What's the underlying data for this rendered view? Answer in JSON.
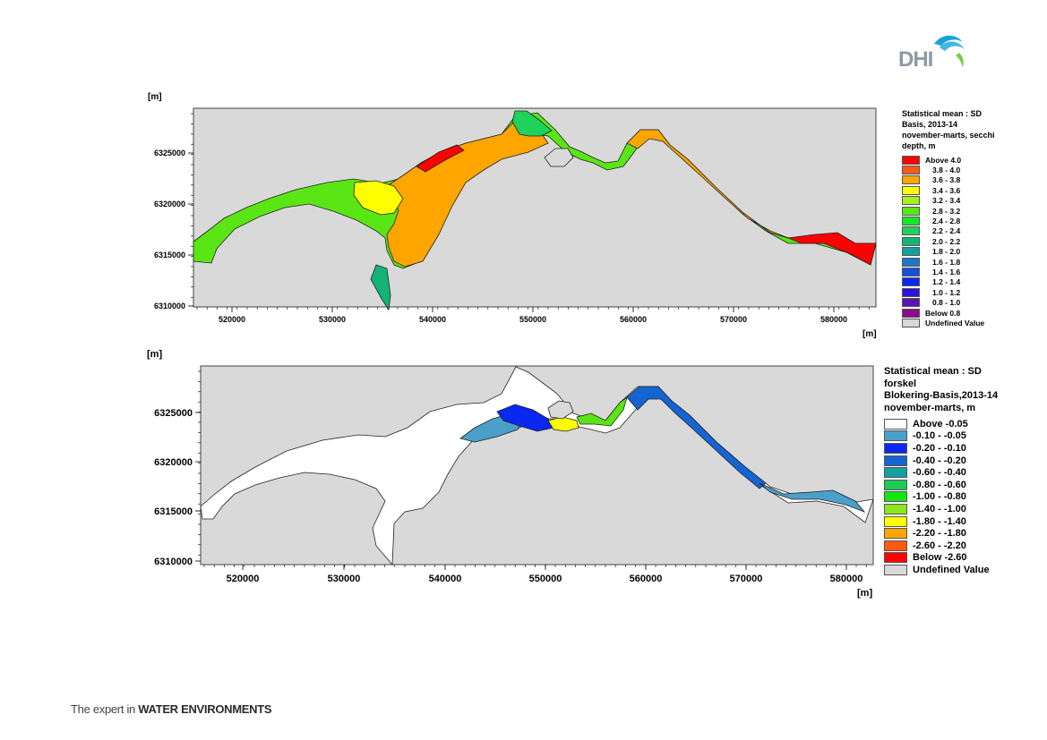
{
  "logo": {
    "text": "DHI"
  },
  "tagline": {
    "prefix": "The expert in ",
    "emphasis": "WATER ENVIRONMENTS"
  },
  "maps": [
    {
      "id": "top",
      "axis_unit_y": "[m]",
      "axis_unit_x": "[m]",
      "x_ticks": [
        "520000",
        "530000",
        "540000",
        "550000",
        "560000",
        "570000",
        "580000"
      ],
      "y_ticks": [
        "6325000",
        "6320000",
        "6315000",
        "6310000"
      ],
      "legend_title": "Statistical mean : SD\nBasis, 2013-14\nnovember-marts, secchi\ndepth, m",
      "legend": [
        {
          "label": "Above 4.0",
          "color": "#ff0000"
        },
        {
          "label": "3.8 - 4.0",
          "color": "#ff5a14"
        },
        {
          "label": "3.6 - 3.8",
          "color": "#ffa500"
        },
        {
          "label": "3.4 - 3.6",
          "color": "#ffff00"
        },
        {
          "label": "3.2 - 3.4",
          "color": "#a8f01e"
        },
        {
          "label": "2.8 - 3.2",
          "color": "#5ae614"
        },
        {
          "label": "2.4 - 2.8",
          "color": "#14e628"
        },
        {
          "label": "2.2 - 2.4",
          "color": "#1ed25a"
        },
        {
          "label": "2.0 - 2.2",
          "color": "#14b478"
        },
        {
          "label": "1.8 - 2.0",
          "color": "#14a0a0"
        },
        {
          "label": "1.6 - 1.8",
          "color": "#1e78c8"
        },
        {
          "label": "1.4 - 1.6",
          "color": "#1450dc"
        },
        {
          "label": "1.2 - 1.4",
          "color": "#0a28f0"
        },
        {
          "label": "1.0 - 1.2",
          "color": "#2814dc"
        },
        {
          "label": "0.8 - 1.0",
          "color": "#5a14b4"
        },
        {
          "label": "Below 0.8",
          "color": "#8c0a8c"
        },
        {
          "label": "Undefined Value",
          "color": "#d9d9d9"
        }
      ]
    },
    {
      "id": "bottom",
      "axis_unit_y": "[m]",
      "axis_unit_x": "[m]",
      "x_ticks": [
        "520000",
        "530000",
        "540000",
        "550000",
        "560000",
        "570000",
        "580000"
      ],
      "y_ticks": [
        "6325000",
        "6320000",
        "6315000",
        "6310000"
      ],
      "legend_title": "Statistical mean : SD\nforskel\nBlokering-Basis,2013-14\nnovember-marts, m",
      "legend": [
        {
          "label": "Above -0.05",
          "color": "#ffffff"
        },
        {
          "label": "-0.10 - -0.05",
          "color": "#4aa0c8"
        },
        {
          "label": "-0.20 - -0.10",
          "color": "#0a28f0"
        },
        {
          "label": "-0.40 - -0.20",
          "color": "#1464d2"
        },
        {
          "label": "-0.60 - -0.40",
          "color": "#14a0a0"
        },
        {
          "label": "-0.80 - -0.60",
          "color": "#1ec85a"
        },
        {
          "label": "-1.00 - -0.80",
          "color": "#14e614"
        },
        {
          "label": "-1.40 - -1.00",
          "color": "#8ce61e"
        },
        {
          "label": "-1.80 - -1.40",
          "color": "#ffff00"
        },
        {
          "label": "-2.20 - -1.80",
          "color": "#ffa500"
        },
        {
          "label": "-2.60 - -2.20",
          "color": "#ff5a14"
        },
        {
          "label": "Below -2.60",
          "color": "#ff0000"
        },
        {
          "label": "Undefined Value",
          "color": "#d9d9d9"
        }
      ]
    }
  ]
}
